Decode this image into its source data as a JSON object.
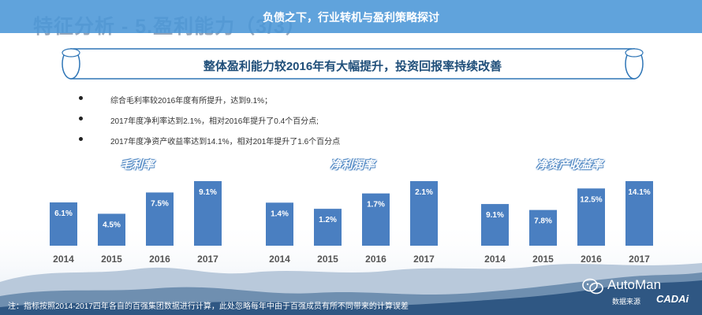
{
  "slide": {
    "title": "特征分析 - 5.盈利能力（3/3）"
  },
  "overlay": {
    "text": "负债之下，行业转机与盈利策略探讨"
  },
  "banner": {
    "text": "整体盈利能力较2016年有大幅提升，投资回报率持续改善"
  },
  "bullets": [
    "综合毛利率较2016年度有所提升，达到9.1%；",
    "2017年度净利率达到2.1%，相对2016年提升了0.4个百分点;",
    "2017年度净资产收益率达到14.1%，相对201年提升了1.6个百分点"
  ],
  "footer": {
    "note": "注：指标按照2014-2017四年各自的百强集团数据进行计算，此处忽略每年中由于百强成员有所不同带来的计算误差"
  },
  "brand": {
    "name": "AutoMan",
    "source": "数据来源",
    "logo": "CADAi"
  },
  "colors": {
    "bar": "#4a7fc1",
    "overlay": "#4a96d7",
    "banner_text": "#1f4e79"
  },
  "chart_data": [
    {
      "type": "bar",
      "title": "毛利率",
      "categories": [
        "2014",
        "2015",
        "2016",
        "2017"
      ],
      "values": [
        6.1,
        4.5,
        7.5,
        9.1
      ],
      "labels": [
        "6.1%",
        "4.5%",
        "7.5%",
        "9.1%"
      ]
    },
    {
      "type": "bar",
      "title": "净利润率",
      "categories": [
        "2014",
        "2015",
        "2016",
        "2017"
      ],
      "values": [
        1.4,
        1.2,
        1.7,
        2.1
      ],
      "labels": [
        "1.4%",
        "1.2%",
        "1.7%",
        "2.1%"
      ]
    },
    {
      "type": "bar",
      "title": "净资产收益率",
      "categories": [
        "2014",
        "2015",
        "2016",
        "2017"
      ],
      "values": [
        9.1,
        7.8,
        12.5,
        14.1
      ],
      "labels": [
        "9.1%",
        "7.8%",
        "12.5%",
        "14.1%"
      ]
    }
  ]
}
